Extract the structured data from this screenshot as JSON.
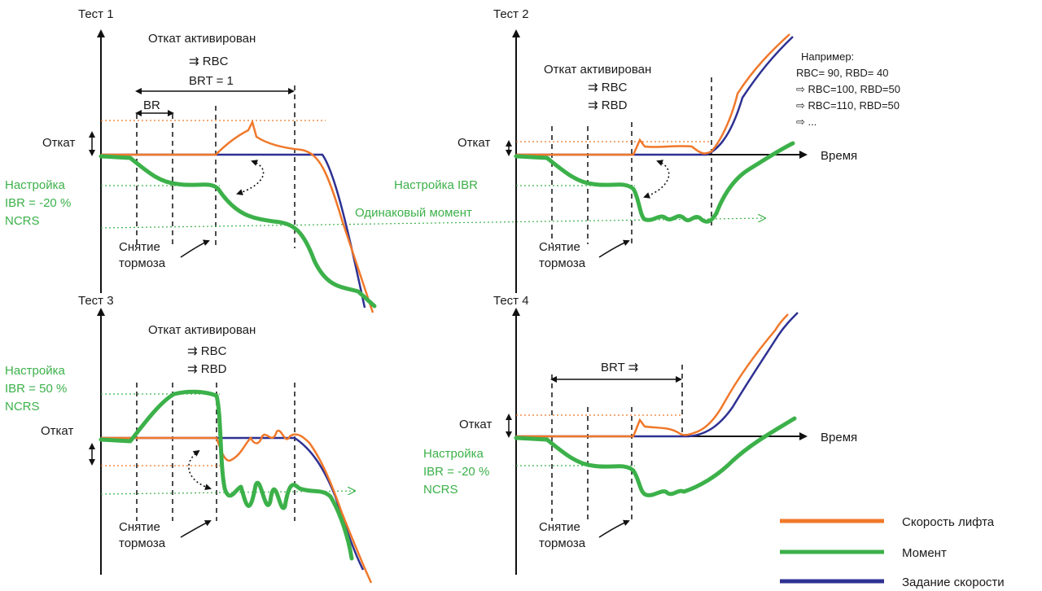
{
  "tests": {
    "t1": {
      "title": "Тест 1",
      "rollback_activated": "Откат активирован",
      "rbc": "⇉ RBC",
      "brt": "BRT = 1",
      "br": "BR",
      "rollback": "Откат",
      "ibr_1": "Настройка",
      "ibr_2": "IBR = -20 %",
      "ibr_3": "NCRS",
      "brake_1": "Снятие",
      "brake_2": "тормоза"
    },
    "t2": {
      "title": "Тест 2",
      "rollback_activated": "Откат активирован",
      "rbc": "⇉ RBC",
      "rbd": "⇉ RBD",
      "rollback": "Откат",
      "time": "Время",
      "ibr": "Настройка IBR",
      "same_torque": "Одинаковый момент",
      "brake_1": "Снятие",
      "brake_2": "тормоза",
      "example": [
        "Например:",
        "RBC= 90, RBD= 40",
        "⇨ RBC=100, RBD=50",
        "⇨ RBC=110, RBD=50",
        "⇨ ..."
      ]
    },
    "t3": {
      "title": "Тест 3",
      "rollback_activated": "Откат активирован",
      "rbc": "⇉ RBC",
      "rbd": "⇉ RBD",
      "ibr_1": "Настройка",
      "ibr_2": "IBR = 50 %",
      "ibr_3": "NCRS",
      "rollback": "Откат",
      "brake_1": "Снятие",
      "brake_2": "тормоза"
    },
    "t4": {
      "title": "Тест 4",
      "brt": "BRT ⇉",
      "rollback": "Откат",
      "time": "Время",
      "ibr_1": "Настройка",
      "ibr_2": "IBR = -20 %",
      "ibr_3": "NCRS",
      "brake_1": "Снятие",
      "brake_2": "тормоза"
    }
  },
  "legend": {
    "speed": "Скорость лифта",
    "torque": "Момент",
    "reference": "Задание скорости"
  },
  "colors": {
    "speed": "#f0782a",
    "torque": "#3cb14a",
    "reference": "#2e3192"
  }
}
